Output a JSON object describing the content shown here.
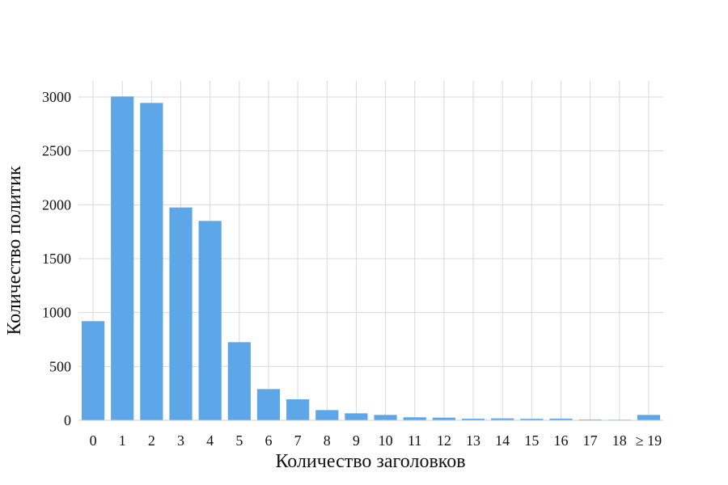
{
  "chart_data": {
    "type": "bar",
    "xlabel": "Количество заголовков",
    "ylabel": "Количество политик",
    "categories": [
      "0",
      "1",
      "2",
      "3",
      "4",
      "5",
      "6",
      "7",
      "8",
      "9",
      "10",
      "11",
      "12",
      "13",
      "14",
      "15",
      "16",
      "17",
      "18",
      "≥ 19"
    ],
    "values": [
      920,
      3005,
      2945,
      1975,
      1850,
      725,
      290,
      195,
      95,
      65,
      50,
      28,
      25,
      15,
      18,
      14,
      16,
      8,
      6,
      50
    ],
    "ylim": [
      0,
      3150
    ],
    "yticks": [
      0,
      500,
      1000,
      1500,
      2000,
      2500,
      3000
    ],
    "grid": true,
    "bar_color": "#5da7e8",
    "grid_color": "#d9d9d9"
  }
}
